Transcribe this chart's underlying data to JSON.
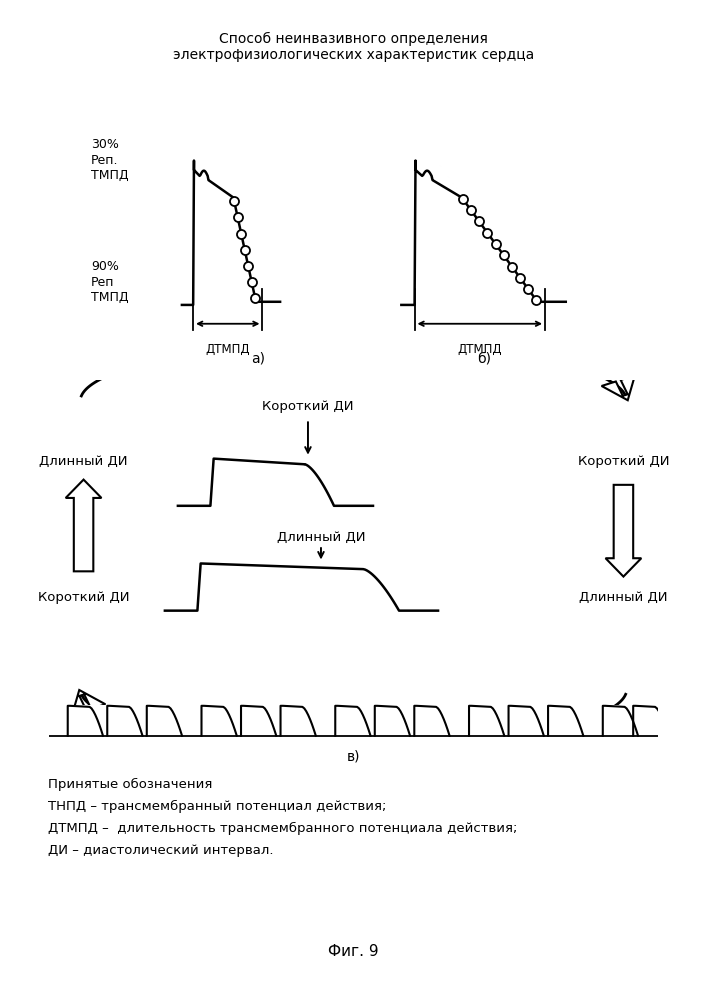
{
  "title": "Способ неинвазивного определения\nэлектрофизиологических характеристик сердца",
  "label_30pct": "30%\nРеп.\nТМПД",
  "label_90pct": "90%\nРеп\nТМПД",
  "label_dtmpd": "ДТМПД",
  "label_a": "а)",
  "label_b": "б)",
  "label_v": "в)",
  "label_korotkiy": "Короткий ДИ",
  "label_dlinny": "Длинный ДИ",
  "legend_line1": "Принятые обозначения",
  "legend_line2": "ТНПД – трансмембранный потенциал действия;",
  "legend_line3": "ДТМПД –  длительность трансмембранного потенциала действия;",
  "legend_line4": "ДИ – диастолический интервал.",
  "fig_label": "Фиг. 9",
  "bg_color": "#ffffff",
  "lc": "#000000"
}
